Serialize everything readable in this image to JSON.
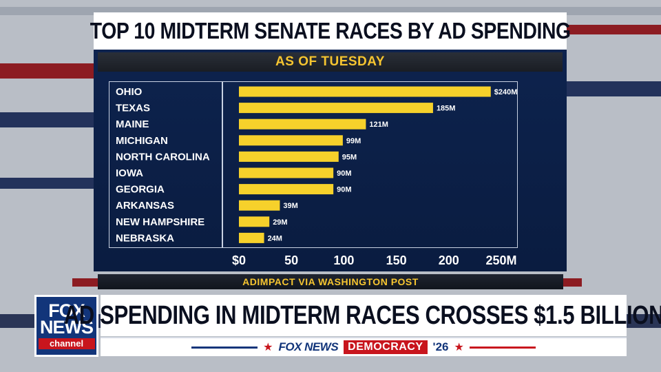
{
  "colors": {
    "panel": "#0e2450",
    "bar": "#f6d12b",
    "accent_gold": "#f6c530",
    "fox_blue": "#12357a",
    "fox_red": "#c8151d"
  },
  "chart_data": {
    "type": "bar",
    "orientation": "horizontal",
    "title": "TOP 10 MIDTERM SENATE RACES BY AD SPENDING",
    "subtitle": "AS OF TUESDAY",
    "source": "ADIMPACT VIA WASHINGTON POST",
    "categories": [
      "OHIO",
      "TEXAS",
      "MAINE",
      "MICHIGAN",
      "NORTH CAROLINA",
      "IOWA",
      "GEORGIA",
      "ARKANSAS",
      "NEW HAMPSHIRE",
      "NEBRASKA"
    ],
    "values": [
      240,
      185,
      121,
      99,
      95,
      90,
      90,
      39,
      29,
      24
    ],
    "value_labels": [
      "$240M",
      "185M",
      "121M",
      "99M",
      "95M",
      "90M",
      "90M",
      "39M",
      "29M",
      "24M"
    ],
    "xlim": [
      0,
      250
    ],
    "x_ticks": [
      0,
      50,
      100,
      150,
      200,
      250
    ],
    "x_tick_labels": [
      "$0",
      "50",
      "100",
      "150",
      "200",
      "250M"
    ],
    "grid": false,
    "legend": "none"
  },
  "lower_third": {
    "logo_line1": "FOX",
    "logo_line2": "NEWS",
    "logo_channel": "channel",
    "headline": "AD SPENDING IN MIDTERM RACES CROSSES $1.5 BILLION",
    "ticker_brand": "FOX NEWS",
    "ticker_section": "DEMOCRACY",
    "ticker_year": "'26",
    "ticker_star": "★"
  }
}
